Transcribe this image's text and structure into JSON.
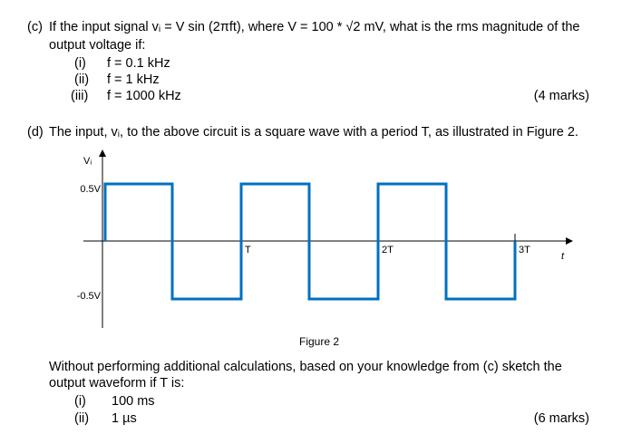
{
  "part_c": {
    "label": "(c)",
    "lines": [
      "If the input signal vᵢ = V sin (2πft), where V = 100 * √2 mV, what is the rms magnitude of the",
      "output voltage if:"
    ],
    "items": [
      {
        "num": "(i)",
        "text": "f = 0.1 kHz"
      },
      {
        "num": "(ii)",
        "text": "f = 1 kHz"
      },
      {
        "num": "(iii)",
        "text": "f = 1000 kHz"
      }
    ],
    "marks": "(4 marks)"
  },
  "part_d": {
    "label": "(d)",
    "text": "The input, vᵢ, to the above circuit is a square wave with a period T, as illustrated in Figure 2."
  },
  "figure": {
    "y_label": "Vᵢ",
    "x_label": "t",
    "y_ticks": [
      "0.5V",
      "-0.5V"
    ],
    "x_ticks": [
      "T",
      "2T",
      "3T"
    ],
    "caption": "Figure 2"
  },
  "question": {
    "lines": [
      "Without performing additional calculations, based on your knowledge from (c) sketch the",
      "output waveform if T is:"
    ],
    "items": [
      {
        "num": "(i)",
        "text": "100 ms"
      },
      {
        "num": "(ii)",
        "text": "1 µs"
      }
    ],
    "marks": "(6 marks)"
  }
}
